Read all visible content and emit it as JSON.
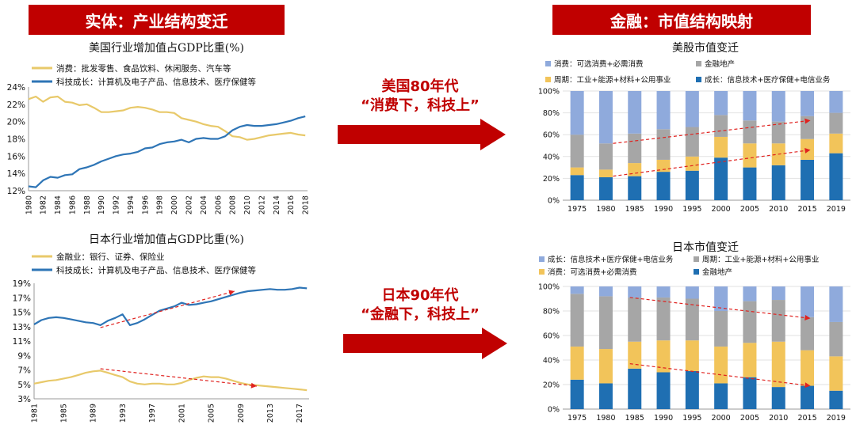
{
  "colors": {
    "red": "#c00000",
    "gold": "#e8c96a",
    "blue": "#2e75b6",
    "bar_dark": "#1f6fb2",
    "bar_gold": "#f2c45a",
    "bar_gray": "#a6a6a6",
    "bar_light": "#8faadc"
  },
  "banners": {
    "left": "实体：产业结构变迁",
    "right": "金融：市值结构映射"
  },
  "arrows": {
    "top": {
      "line1": "美国80年代",
      "line2": "“消费下，科技上”"
    },
    "bottom": {
      "line1": "日本90年代",
      "line2": "“金融下，科技上”"
    }
  },
  "chart_data": [
    {
      "type": "line",
      "title": "美国行业增加值占GDP比重(%)",
      "series": [
        {
          "name": "消费：批发零售、食品饮料、休闲服务、汽车等",
          "color": "#e8c96a",
          "x": [
            1980,
            1981,
            1982,
            1983,
            1984,
            1985,
            1986,
            1987,
            1988,
            1989,
            1990,
            1991,
            1992,
            1993,
            1994,
            1995,
            1996,
            1997,
            1998,
            1999,
            2000,
            2001,
            2002,
            2003,
            2004,
            2005,
            2006,
            2007,
            2008,
            2009,
            2010,
            2011,
            2012,
            2013,
            2014,
            2015,
            2016,
            2017,
            2018
          ],
          "values": [
            22.6,
            22.9,
            22.3,
            22.8,
            22.9,
            22.3,
            22.2,
            21.9,
            22.0,
            21.6,
            21.1,
            21.1,
            21.2,
            21.3,
            21.6,
            21.7,
            21.6,
            21.4,
            21.1,
            21.1,
            21.0,
            20.4,
            20.2,
            20.0,
            19.7,
            19.5,
            19.4,
            18.9,
            18.3,
            18.2,
            17.9,
            18.0,
            18.2,
            18.4,
            18.5,
            18.6,
            18.7,
            18.5,
            18.4
          ]
        },
        {
          "name": "科技成长：计算机及电子产品、信息技术、医疗保健等",
          "color": "#2e75b6",
          "x": [
            1980,
            1981,
            1982,
            1983,
            1984,
            1985,
            1986,
            1987,
            1988,
            1989,
            1990,
            1991,
            1992,
            1993,
            1994,
            1995,
            1996,
            1997,
            1998,
            1999,
            2000,
            2001,
            2002,
            2003,
            2004,
            2005,
            2006,
            2007,
            2008,
            2009,
            2010,
            2011,
            2012,
            2013,
            2014,
            2015,
            2016,
            2017,
            2018
          ],
          "values": [
            12.5,
            12.4,
            13.2,
            13.6,
            13.5,
            13.8,
            13.9,
            14.5,
            14.7,
            15.0,
            15.4,
            15.7,
            16.0,
            16.2,
            16.3,
            16.5,
            16.9,
            17.0,
            17.4,
            17.6,
            17.7,
            17.9,
            17.6,
            18.0,
            18.1,
            18.0,
            18.0,
            18.3,
            19.0,
            19.4,
            19.6,
            19.5,
            19.5,
            19.6,
            19.7,
            19.9,
            20.1,
            20.4,
            20.6
          ]
        }
      ],
      "yticks": [
        "12%",
        "14%",
        "16%",
        "18%",
        "20%",
        "22%",
        "24%"
      ],
      "xticks": [
        "1980",
        "1982",
        "1984",
        "1986",
        "1988",
        "1990",
        "1992",
        "1994",
        "1996",
        "1998",
        "2000",
        "2002",
        "2004",
        "2006",
        "2008",
        "2010",
        "2012",
        "2014",
        "2016",
        "2018"
      ],
      "ylim": [
        12,
        24
      ]
    },
    {
      "type": "line",
      "title": "日本行业增加值占GDP比重(%)",
      "series": [
        {
          "name": "金融业：银行、证券、保险业",
          "color": "#e8c96a",
          "x": [
            1981,
            1982,
            1983,
            1984,
            1985,
            1986,
            1987,
            1988,
            1989,
            1990,
            1991,
            1992,
            1993,
            1994,
            1995,
            1996,
            1997,
            1998,
            1999,
            2000,
            2001,
            2002,
            2003,
            2004,
            2005,
            2006,
            2007,
            2008,
            2009,
            2010,
            2011,
            2012,
            2013,
            2014,
            2015,
            2016,
            2017,
            2018
          ],
          "values": [
            5.1,
            5.3,
            5.5,
            5.6,
            5.8,
            6.0,
            6.3,
            6.6,
            6.8,
            6.9,
            6.6,
            6.3,
            6.0,
            5.4,
            5.1,
            5.0,
            5.1,
            5.1,
            5.0,
            5.0,
            5.2,
            5.6,
            5.9,
            6.1,
            6.0,
            6.0,
            5.8,
            5.5,
            5.2,
            5.0,
            4.9,
            4.8,
            4.7,
            4.6,
            4.5,
            4.4,
            4.3,
            4.2
          ]
        },
        {
          "name": "科技成长：计算机及电子产品、信息技术、医疗保健等",
          "color": "#2e75b6",
          "x": [
            1981,
            1982,
            1983,
            1984,
            1985,
            1986,
            1987,
            1988,
            1989,
            1990,
            1991,
            1992,
            1993,
            1994,
            1995,
            1996,
            1997,
            1998,
            1999,
            2000,
            2001,
            2002,
            2003,
            2004,
            2005,
            2006,
            2007,
            2008,
            2009,
            2010,
            2011,
            2012,
            2013,
            2014,
            2015,
            2016,
            2017,
            2018
          ],
          "values": [
            13.3,
            13.9,
            14.2,
            14.3,
            14.2,
            14.0,
            13.8,
            13.6,
            13.5,
            13.2,
            13.8,
            14.2,
            14.7,
            13.2,
            13.5,
            14.0,
            14.6,
            15.2,
            15.5,
            15.8,
            16.3,
            16.0,
            16.1,
            16.3,
            16.5,
            16.8,
            17.1,
            17.4,
            17.7,
            17.9,
            18.0,
            18.1,
            18.2,
            18.1,
            18.1,
            18.2,
            18.4,
            18.3
          ]
        }
      ],
      "yticks": [
        "3%",
        "5%",
        "7%",
        "9%",
        "11%",
        "13%",
        "15%",
        "17%",
        "19%"
      ],
      "xticks": [
        "1981",
        "1985",
        "1989",
        "1993",
        "1997",
        "2001",
        "2005",
        "2009",
        "2013",
        "2017"
      ],
      "ylim": [
        3,
        19
      ]
    },
    {
      "type": "bar",
      "stacked": true,
      "title": "美股市值变迁",
      "categories": [
        "1975",
        "1980",
        "1985",
        "1990",
        "1995",
        "2000",
        "2005",
        "2010",
        "2015",
        "2019"
      ],
      "series": [
        {
          "name": "成长：信息技术+医疗保健+电信业务",
          "color": "#1f6fb2",
          "values": [
            23,
            21,
            22,
            26,
            27,
            39,
            30,
            32,
            37,
            43
          ]
        },
        {
          "name": "周期：工业+能源+材料+公用事业",
          "color": "#f2c45a",
          "values": [
            7,
            7,
            12,
            11,
            13,
            19,
            22,
            20,
            19,
            18
          ]
        },
        {
          "name": "金融地产",
          "color": "#a6a6a6",
          "values": [
            30,
            24,
            27,
            28,
            27,
            20,
            21,
            20,
            21,
            19
          ]
        },
        {
          "name": "消费：可选消费+必需消费",
          "color": "#8faadc",
          "values": [
            40,
            48,
            39,
            35,
            33,
            22,
            27,
            28,
            23,
            20
          ]
        }
      ],
      "yticks": [
        "0%",
        "20%",
        "40%",
        "60%",
        "80%",
        "100%"
      ],
      "ylim": [
        0,
        100
      ]
    },
    {
      "type": "bar",
      "stacked": true,
      "title": "日本市值变迁",
      "categories": [
        "1975",
        "1980",
        "1985",
        "1990",
        "1995",
        "2000",
        "2005",
        "2010",
        "2015",
        "2019"
      ],
      "series": [
        {
          "name": "金融地产",
          "color": "#1f6fb2",
          "values": [
            24,
            21,
            33,
            30,
            31,
            21,
            26,
            18,
            19,
            15
          ]
        },
        {
          "name": "消费：可选消费+必需消费",
          "color": "#f2c45a",
          "values": [
            27,
            28,
            22,
            26,
            25,
            30,
            28,
            37,
            29,
            28
          ]
        },
        {
          "name": "周期：工业+能源+材料+公用事业",
          "color": "#a6a6a6",
          "values": [
            43,
            43,
            36,
            35,
            34,
            29,
            34,
            34,
            27,
            28
          ]
        },
        {
          "name": "成长：信息技术+医疗保健+电信业务",
          "color": "#8faadc",
          "values": [
            6,
            8,
            9,
            9,
            10,
            20,
            12,
            11,
            25,
            29
          ]
        }
      ],
      "yticks": [
        "0%",
        "20%",
        "40%",
        "60%",
        "80%",
        "100%"
      ],
      "ylim": [
        0,
        100
      ]
    }
  ]
}
